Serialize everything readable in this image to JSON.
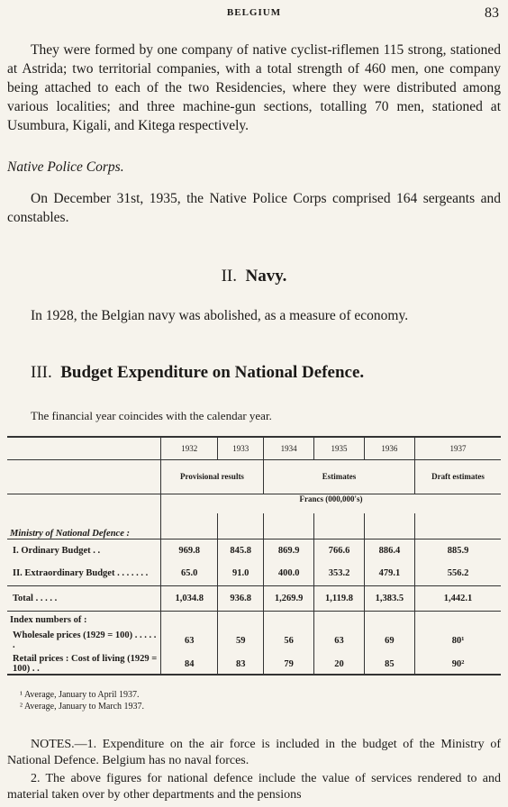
{
  "header": {
    "title": "BELGIUM",
    "page": "83"
  },
  "intro": "They were formed by one company of native cyclist-riflemen 115 strong, stationed at Astrida; two territorial companies, with a total strength of 460 men, one company being attached to each of the two Residencies, where they were distributed among various localities; and three machine-gun sections, totalling 70 men, stationed at Usumbura, Kigali, and Kitega respectively.",
  "police_heading": "Native Police Corps.",
  "police_text": "On December 31st, 1935, the Native Police Corps comprised 164 sergeants and constables.",
  "navy_heading": {
    "number": "II.",
    "title": "Navy."
  },
  "navy_text": "In 1928, the Belgian navy was abolished, as a measure of economy.",
  "budget_heading": {
    "number": "III.",
    "title": "Budget Expenditure on National Defence."
  },
  "budget_text": "The financial year coincides with the calendar year.",
  "table": {
    "years": [
      "1932",
      "1933",
      "1934",
      "1935",
      "1936",
      "1937"
    ],
    "groups": [
      "Provisional results",
      "Estimates",
      "Draft estimates"
    ],
    "unit": "Francs (000,000's)",
    "section1": "Ministry of National Defence :",
    "rows": [
      {
        "label": "I. Ordinary Budget . .",
        "values": [
          "969.8",
          "845.8",
          "869.9",
          "766.6",
          "886.4",
          "885.9"
        ]
      },
      {
        "label": "II. Extraordinary Budget . . . . . . .",
        "values": [
          "65.0",
          "91.0",
          "400.0",
          "353.2",
          "479.1",
          "556.2"
        ]
      },
      {
        "label": "Total . . . . .",
        "values": [
          "1,034.8",
          "936.8",
          "1,269.9",
          "1,119.8",
          "1,383.5",
          "1,442.1"
        ]
      }
    ],
    "section2": "Index numbers of :",
    "index_rows": [
      {
        "label": "Wholesale prices (1929 = 100) . . . . . .",
        "values": [
          "63",
          "59",
          "56",
          "63",
          "69",
          "80¹"
        ]
      },
      {
        "label": "Retail prices : Cost of living (1929 = 100) . .",
        "values": [
          "84",
          "83",
          "79",
          "20",
          "85",
          "90²"
        ]
      }
    ]
  },
  "footnotes": [
    "¹ Average, January to April 1937.",
    "² Average, January to March 1937."
  ],
  "notes": [
    "NOTES.—1. Expenditure on the air force is included in the budget of the Ministry of National Defence. Belgium has no naval forces.",
    "2. The above figures for national defence include the value of services rendered to and material taken over by other departments and the pensions"
  ]
}
